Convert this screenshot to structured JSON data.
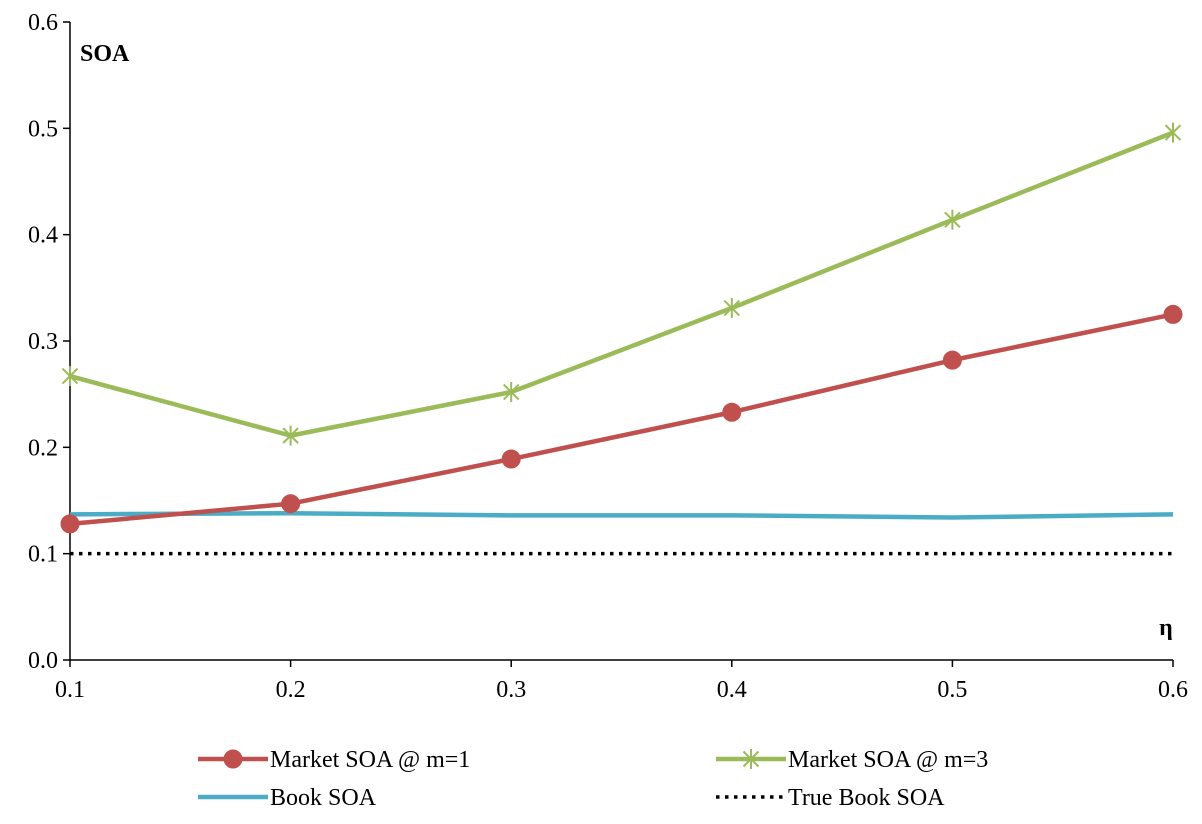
{
  "chart_data": {
    "type": "line",
    "title": "",
    "xlabel": "η",
    "ylabel": "SOA",
    "x": [
      0.1,
      0.2,
      0.3,
      0.4,
      0.5,
      0.6
    ],
    "x_tick_labels": [
      "0.1",
      "0.2",
      "0.3",
      "0.4",
      "0.5",
      "0.6"
    ],
    "xlim": [
      0.1,
      0.6
    ],
    "y_ticks": [
      0.0,
      0.1,
      0.2,
      0.3,
      0.4,
      0.5,
      0.6
    ],
    "y_tick_labels": [
      "0.0",
      "0.1",
      "0.2",
      "0.3",
      "0.4",
      "0.5",
      "0.6"
    ],
    "ylim": [
      0,
      0.6
    ],
    "grid": false,
    "legend_position": "bottom",
    "series": [
      {
        "name": "Market SOA @ m=1",
        "color": "#c0504d",
        "marker": "circle",
        "style": "solid",
        "values": [
          0.128,
          0.147,
          0.189,
          0.233,
          0.282,
          0.325
        ]
      },
      {
        "name": "Market SOA @ m=3",
        "color": "#9bbb59",
        "marker": "asterisk",
        "style": "solid",
        "values": [
          0.267,
          0.211,
          0.252,
          0.331,
          0.414,
          0.496
        ]
      },
      {
        "name": "Book SOA",
        "color": "#4bacc6",
        "marker": "none",
        "style": "solid",
        "values": [
          0.137,
          0.138,
          0.136,
          0.136,
          0.134,
          0.137
        ]
      },
      {
        "name": "True Book SOA",
        "color": "#000000",
        "marker": "none",
        "style": "dotted",
        "values": [
          0.1,
          0.1,
          0.1,
          0.1,
          0.1,
          0.1
        ]
      }
    ]
  }
}
